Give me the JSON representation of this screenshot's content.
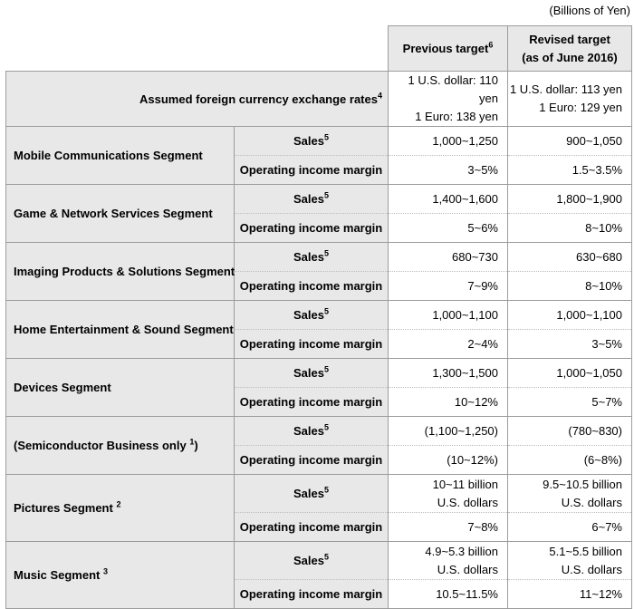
{
  "note": "(Billions of Yen)",
  "colors": {
    "cell_background": "#e8e8e8",
    "value_background": "#ffffff",
    "solid_border": "#9c9c9c",
    "dotted_border": "#bcbcbc",
    "text": "#000000"
  },
  "headers": {
    "previous": {
      "label": "Previous target",
      "sup": "6"
    },
    "revised": {
      "line1": "Revised target",
      "line2": "(as of June 2016)"
    }
  },
  "exchange": {
    "label": "Assumed foreign currency exchange rates",
    "sup": "4",
    "previous": "1 U.S. dollar: 110 yen\n1 Euro: 138 yen",
    "revised": "1 U.S. dollar: 113 yen\n1 Euro: 129 yen"
  },
  "row_labels": {
    "sales": "Sales",
    "sales_sup": "5",
    "oim": "Operating income margin"
  },
  "segments": [
    {
      "name_pre": "Mobile Communications Segment",
      "name_sup": "",
      "name_post": "",
      "sales_previous": "1,000~1,250",
      "sales_revised": "900~1,050",
      "oim_previous": "3~5%",
      "oim_revised": "1.5~3.5%"
    },
    {
      "name_pre": "Game & Network Services Segment",
      "name_sup": "",
      "name_post": "",
      "sales_previous": "1,400~1,600",
      "sales_revised": "1,800~1,900",
      "oim_previous": "5~6%",
      "oim_revised": "8~10%"
    },
    {
      "name_pre": "Imaging Products & Solutions Segment",
      "name_sup": "",
      "name_post": "",
      "sales_previous": "680~730",
      "sales_revised": "630~680",
      "oim_previous": "7~9%",
      "oim_revised": "8~10%"
    },
    {
      "name_pre": "Home Entertainment & Sound Segment",
      "name_sup": "",
      "name_post": "",
      "sales_previous": "1,000~1,100",
      "sales_revised": "1,000~1,100",
      "oim_previous": "2~4%",
      "oim_revised": "3~5%"
    },
    {
      "name_pre": "Devices Segment",
      "name_sup": "",
      "name_post": "",
      "sales_previous": "1,300~1,500",
      "sales_revised": "1,000~1,050",
      "oim_previous": "10~12%",
      "oim_revised": "5~7%"
    },
    {
      "name_pre": "(Semiconductor Business only ",
      "name_sup": "1",
      "name_post": ")",
      "sales_previous": "(1,100~1,250)",
      "sales_revised": "(780~830)",
      "oim_previous": "(10~12%)",
      "oim_revised": "(6~8%)"
    },
    {
      "name_pre": "Pictures Segment ",
      "name_sup": "2",
      "name_post": "",
      "sales_previous": "10~11 billion\nU.S. dollars",
      "sales_revised": "9.5~10.5 billion\nU.S. dollars",
      "oim_previous": "7~8%",
      "oim_revised": "6~7%"
    },
    {
      "name_pre": "Music Segment ",
      "name_sup": "3",
      "name_post": "",
      "sales_previous": "4.9~5.3 billion\nU.S. dollars",
      "sales_revised": "5.1~5.5 billion\nU.S. dollars",
      "oim_previous": "10.5~11.5%",
      "oim_revised": "11~12%"
    }
  ]
}
